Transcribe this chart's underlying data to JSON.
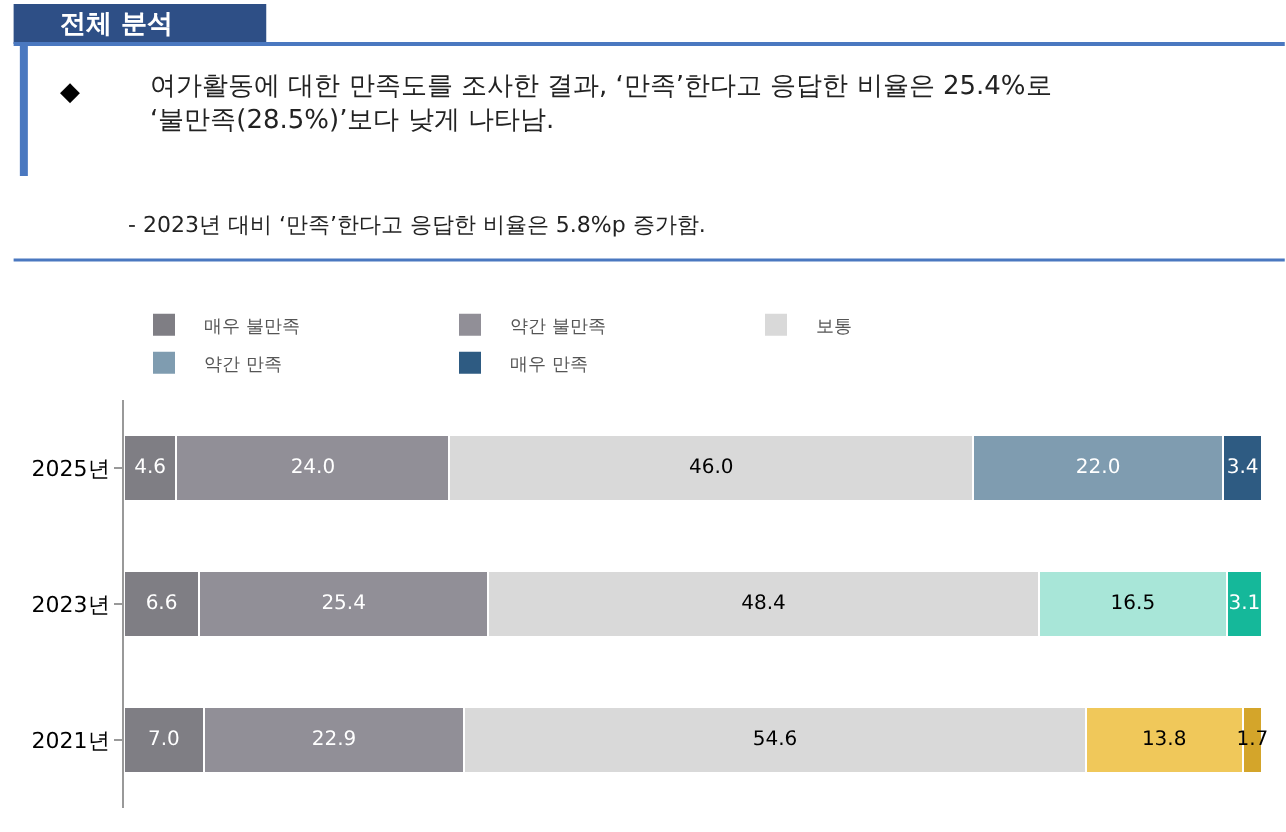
{
  "chart_data": {
    "type": "bar",
    "orientation": "horizontal",
    "stacked": true,
    "title": "전체 분석",
    "subtitle": "◆\t여가활동에 대한 만족도를 조사한 결과, ‘만족’한다고 응답한 비율은 25.4%로\n‘불만족(28.5%)’보다 낮게 나타남.",
    "annotations": [
      "- 2023년 대비 ‘만족’한다고 응답한 비율은 5.8%p 증가함."
    ],
    "categories": [
      "2025년",
      "2023년",
      "2021년"
    ],
    "series": [
      {
        "name": "매우 불만족",
        "color": "#7f7e84",
        "values": [
          4.6,
          6.6,
          7.0
        ],
        "value_labels": [
          "4.6",
          "6.6",
          "7.0"
        ]
      },
      {
        "name": "약간 불만족",
        "color": "#918f97",
        "values": [
          24.0,
          25.4,
          22.9
        ],
        "value_labels": [
          "24.0",
          "25.4",
          "22.9"
        ]
      },
      {
        "name": "보통",
        "color": "#d9d9d9",
        "values": [
          46.0,
          48.4,
          54.6
        ],
        "value_labels": [
          "46.0",
          "48.4",
          "54.6"
        ]
      },
      {
        "name": "약간 만족",
        "colors": [
          "#7f9cb0",
          "#a8e6d8",
          "#f0c85a"
        ],
        "values": [
          22.0,
          16.5,
          13.8
        ],
        "value_labels": [
          "22.0",
          "16.5",
          "13.8"
        ]
      },
      {
        "name": "매우 만족",
        "colors": [
          "#2e5b82",
          "#15b89a",
          "#d4a52a"
        ],
        "values": [
          3.4,
          3.1,
          1.7
        ],
        "value_labels": [
          "3.4",
          "3.1",
          "1.7"
        ]
      }
    ],
    "xlim": [
      0,
      100
    ],
    "tick_labels": "y",
    "legend": "top"
  }
}
